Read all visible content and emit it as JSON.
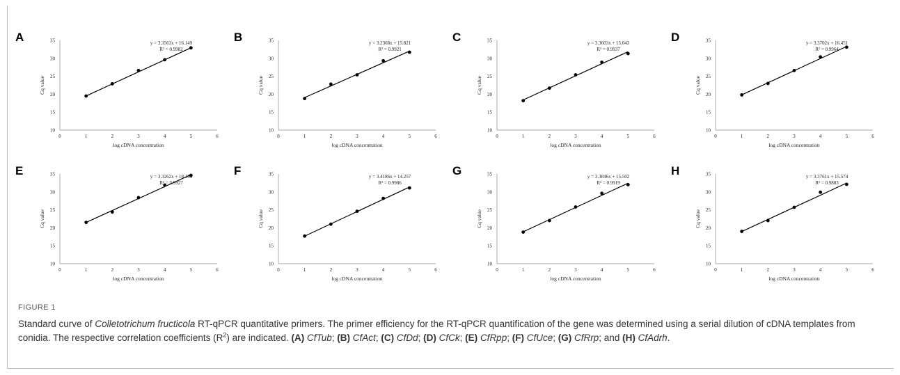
{
  "figure": {
    "number": "FIGURE 1",
    "caption": {
      "p1": "Standard curve of ",
      "species": "Colletotrichum fructicola",
      "p2": " RT-qPCR quantitative primers. The primer efficiency for the RT-qPCR quantification of the gene was determined using a serial dilution of cDNA templates from conidia. The respective correlation coefficients (R",
      "sup": "2",
      "p3": ") are indicated. ",
      "items": [
        {
          "label": "(A)",
          "gene": "CfTub",
          "sep": "; "
        },
        {
          "label": "(B)",
          "gene": "CfAct",
          "sep": ";"
        },
        {
          "label": "(C)",
          "gene": "CfDd",
          "sep": "; "
        },
        {
          "label": "(D)",
          "gene": "CfCk",
          "sep": "; "
        },
        {
          "label": "(E)",
          "gene": "CfRpp",
          "sep": "; "
        },
        {
          "label": "(F)",
          "gene": "CfUce",
          "sep": "; "
        },
        {
          "label": "(G)",
          "gene": "CfRrp",
          "sep": "; and "
        },
        {
          "label": "(H)",
          "gene": "CfAdrh",
          "sep": "."
        }
      ]
    }
  },
  "chart_data": [
    {
      "panel": "A",
      "type": "scatter",
      "trendline": "linear",
      "equation": "y = 3.3563x + 16.149",
      "r2": "R² = 0.9982",
      "xlabel": "log cDNA concentration",
      "ylabel": "Cq value",
      "xlim": [
        0,
        6
      ],
      "ylim": [
        10,
        35
      ],
      "xticks": [
        0,
        1,
        2,
        3,
        4,
        5,
        6
      ],
      "yticks": [
        10,
        15,
        20,
        25,
        30,
        35
      ],
      "x": [
        1,
        2,
        3,
        4,
        5
      ],
      "y": [
        19.5,
        22.9,
        26.6,
        29.6,
        32.9
      ],
      "slope": 3.3563,
      "intercept": 16.149
    },
    {
      "panel": "B",
      "type": "scatter",
      "trendline": "linear",
      "equation": "y = 3.2368x + 15.821",
      "r2": "R² = 0.9921",
      "xlabel": "log cDNA concentration",
      "ylabel": "Cq value",
      "xlim": [
        0,
        6
      ],
      "ylim": [
        10,
        35
      ],
      "xticks": [
        0,
        1,
        2,
        3,
        4,
        5,
        6
      ],
      "yticks": [
        10,
        15,
        20,
        25,
        30,
        35
      ],
      "x": [
        1,
        2,
        3,
        4,
        5
      ],
      "y": [
        18.8,
        22.8,
        25.4,
        29.3,
        31.7
      ],
      "slope": 3.2368,
      "intercept": 15.821
    },
    {
      "panel": "C",
      "type": "scatter",
      "trendline": "linear",
      "equation": "y = 3.3603x + 15.043",
      "r2": "R² = 0.9937",
      "xlabel": "log cDNA concentration",
      "ylabel": "Cq value",
      "xlim": [
        0,
        6
      ],
      "ylim": [
        10,
        35
      ],
      "xticks": [
        0,
        1,
        2,
        3,
        4,
        5,
        6
      ],
      "yticks": [
        10,
        15,
        20,
        25,
        30,
        35
      ],
      "x": [
        1,
        2,
        3,
        4,
        5
      ],
      "y": [
        18.2,
        21.7,
        25.4,
        28.9,
        31.3
      ],
      "slope": 3.3603,
      "intercept": 15.043
    },
    {
      "panel": "D",
      "type": "scatter",
      "trendline": "linear",
      "equation": "y = 3.3702x + 16.451",
      "r2": "R² = 0.9964",
      "xlabel": "log cDNA concentration",
      "ylabel": "Cq value",
      "xlim": [
        0,
        6
      ],
      "ylim": [
        10,
        35
      ],
      "xticks": [
        0,
        1,
        2,
        3,
        4,
        5,
        6
      ],
      "yticks": [
        10,
        15,
        20,
        25,
        30,
        35
      ],
      "x": [
        1,
        2,
        3,
        4,
        5
      ],
      "y": [
        19.8,
        23.0,
        26.6,
        30.4,
        33.1
      ],
      "slope": 3.3702,
      "intercept": 16.451
    },
    {
      "panel": "E",
      "type": "scatter",
      "trendline": "linear",
      "equation": "y = 3.3262x + 18.165",
      "r2": "R² = 0.9927",
      "xlabel": "log cDNA concentration",
      "ylabel": "Cq value",
      "xlim": [
        0,
        6
      ],
      "ylim": [
        10,
        35
      ],
      "xticks": [
        0,
        1,
        2,
        3,
        4,
        5,
        6
      ],
      "yticks": [
        10,
        15,
        20,
        25,
        30,
        35
      ],
      "x": [
        1,
        2,
        3,
        4,
        5
      ],
      "y": [
        21.5,
        24.4,
        28.4,
        31.9,
        34.6
      ],
      "slope": 3.3262,
      "intercept": 18.165
    },
    {
      "panel": "F",
      "type": "scatter",
      "trendline": "linear",
      "equation": "y = 3.4186x + 14.257",
      "r2": "R² = 0.9986",
      "xlabel": "log cDNA concentration",
      "ylabel": "Cq value",
      "xlim": [
        0,
        6
      ],
      "ylim": [
        10,
        35
      ],
      "xticks": [
        0,
        1,
        2,
        3,
        4,
        5,
        6
      ],
      "yticks": [
        10,
        15,
        20,
        25,
        30,
        35
      ],
      "x": [
        1,
        2,
        3,
        4,
        5
      ],
      "y": [
        17.7,
        21.0,
        24.6,
        28.2,
        31.1
      ],
      "slope": 3.4186,
      "intercept": 14.257
    },
    {
      "panel": "G",
      "type": "scatter",
      "trendline": "linear",
      "equation": "y = 3.3846x + 15.502",
      "r2": "R² = 0.9919",
      "xlabel": "log cDNA concentration",
      "ylabel": "Cq value",
      "xlim": [
        0,
        6
      ],
      "ylim": [
        10,
        35
      ],
      "xticks": [
        0,
        1,
        2,
        3,
        4,
        5,
        6
      ],
      "yticks": [
        10,
        15,
        20,
        25,
        30,
        35
      ],
      "x": [
        1,
        2,
        3,
        4,
        5
      ],
      "y": [
        18.8,
        22.0,
        25.8,
        29.6,
        32.0
      ],
      "slope": 3.3846,
      "intercept": 15.502
    },
    {
      "panel": "H",
      "type": "scatter",
      "trendline": "linear",
      "equation": "y = 3.3761x + 15.574",
      "r2": "R² = 0.9883",
      "xlabel": "log cDNA concentration",
      "ylabel": "Cq value",
      "xlim": [
        0,
        6
      ],
      "ylim": [
        10,
        35
      ],
      "xticks": [
        0,
        1,
        2,
        3,
        4,
        5,
        6
      ],
      "yticks": [
        10,
        15,
        20,
        25,
        30,
        35
      ],
      "x": [
        1,
        2,
        3,
        4,
        5
      ],
      "y": [
        19.0,
        22.0,
        25.7,
        29.9,
        32.1
      ],
      "slope": 3.3761,
      "intercept": 15.574
    }
  ]
}
